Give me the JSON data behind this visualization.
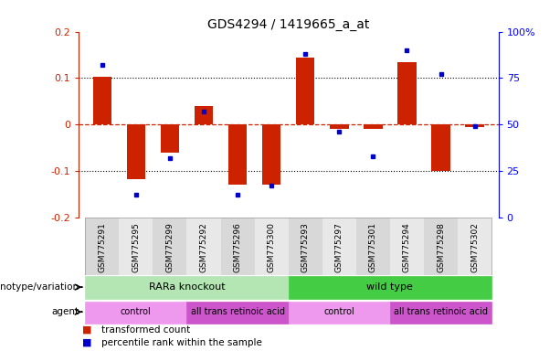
{
  "title": "GDS4294 / 1419665_a_at",
  "samples": [
    "GSM775291",
    "GSM775295",
    "GSM775299",
    "GSM775292",
    "GSM775296",
    "GSM775300",
    "GSM775293",
    "GSM775297",
    "GSM775301",
    "GSM775294",
    "GSM775298",
    "GSM775302"
  ],
  "bar_values": [
    0.103,
    -0.117,
    -0.06,
    0.04,
    -0.13,
    -0.13,
    0.145,
    -0.01,
    -0.01,
    0.135,
    -0.1,
    -0.005
  ],
  "dot_percentiles": [
    82,
    12,
    32,
    57,
    12,
    17,
    88,
    46,
    33,
    90,
    77,
    49
  ],
  "bar_color": "#cc2200",
  "dot_color": "#0000cc",
  "ylim_left": [
    -0.2,
    0.2
  ],
  "ylim_right": [
    0,
    100
  ],
  "right_ticks": [
    0,
    25,
    50,
    75,
    100
  ],
  "right_tick_labels": [
    "0",
    "25",
    "50",
    "75",
    "100%"
  ],
  "left_ticks": [
    -0.2,
    -0.1,
    0.0,
    0.1,
    0.2
  ],
  "left_tick_labels": [
    "-0.2",
    "-0.1",
    "0",
    "0.1",
    "0.2"
  ],
  "groups": [
    {
      "label": "RARa knockout",
      "start": 0,
      "end": 6,
      "color": "#b3e6b3"
    },
    {
      "label": "wild type",
      "start": 6,
      "end": 12,
      "color": "#44cc44"
    }
  ],
  "agents": [
    {
      "label": "control",
      "start": 0,
      "end": 3,
      "color": "#ee99ee"
    },
    {
      "label": "all trans retinoic acid",
      "start": 3,
      "end": 6,
      "color": "#cc55cc"
    },
    {
      "label": "control",
      "start": 6,
      "end": 9,
      "color": "#ee99ee"
    },
    {
      "label": "all trans retinoic acid",
      "start": 9,
      "end": 12,
      "color": "#cc55cc"
    }
  ],
  "legend_items": [
    {
      "label": "transformed count",
      "color": "#cc2200"
    },
    {
      "label": "percentile rank within the sample",
      "color": "#0000cc"
    }
  ],
  "genotype_label": "genotype/variation",
  "agent_label": "agent",
  "bar_width": 0.55,
  "fig_width": 6.13,
  "fig_height": 3.84,
  "sample_bg_even": "#d8d8d8",
  "sample_bg_odd": "#e8e8e8"
}
